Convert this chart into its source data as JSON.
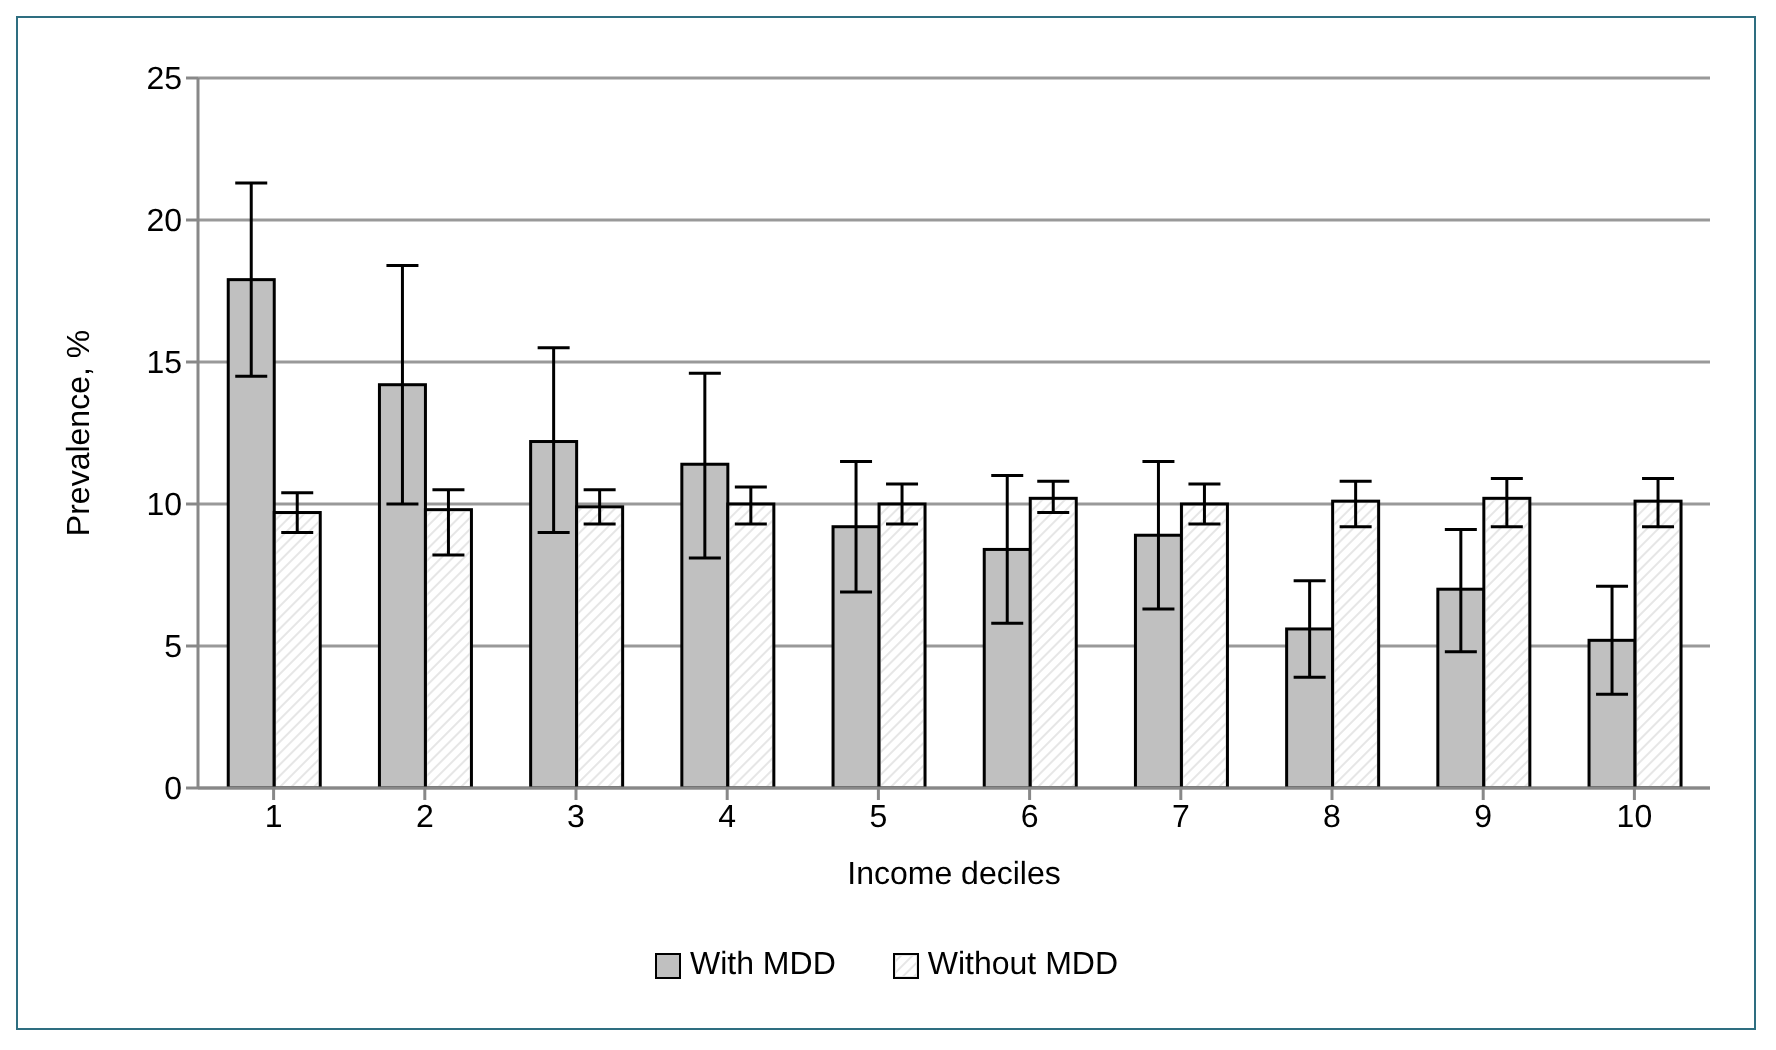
{
  "chart_data": {
    "type": "bar",
    "xlabel": "Income deciles",
    "ylabel": "Prevalence, %",
    "categories": [
      "1",
      "2",
      "3",
      "4",
      "5",
      "6",
      "7",
      "8",
      "9",
      "10"
    ],
    "series": [
      {
        "name": "With MDD",
        "color": "#c0c0c0",
        "values": [
          17.9,
          14.2,
          12.2,
          11.4,
          9.2,
          8.4,
          8.9,
          5.6,
          7.0,
          5.2
        ],
        "errors": [
          [
            14.5,
            21.3
          ],
          [
            10,
            18.4
          ],
          [
            9,
            15.5
          ],
          [
            8.1,
            14.6
          ],
          [
            6.9,
            11.5
          ],
          [
            5.8,
            11
          ],
          [
            6.3,
            11.5
          ],
          [
            3.9,
            7.3
          ],
          [
            4.8,
            9.1
          ],
          [
            3.3,
            7.1
          ]
        ]
      },
      {
        "name": "Without MDD",
        "color": "#e6e6e6",
        "values": [
          9.7,
          9.8,
          9.9,
          10.0,
          10.0,
          10.2,
          10.0,
          10.1,
          10.2,
          10.1
        ],
        "errors": [
          [
            9,
            10.4
          ],
          [
            8.2,
            10.5
          ],
          [
            9.3,
            10.5
          ],
          [
            9.3,
            10.6
          ],
          [
            9.3,
            10.7
          ],
          [
            9.7,
            10.8
          ],
          [
            9.3,
            10.7
          ],
          [
            9.2,
            10.8
          ],
          [
            9.2,
            10.9
          ],
          [
            9.2,
            10.9
          ]
        ]
      }
    ],
    "ylim": [
      0,
      25
    ],
    "yticks": [
      0,
      5,
      10,
      15,
      20,
      25
    ],
    "grid": "y",
    "legend": "bottom"
  }
}
